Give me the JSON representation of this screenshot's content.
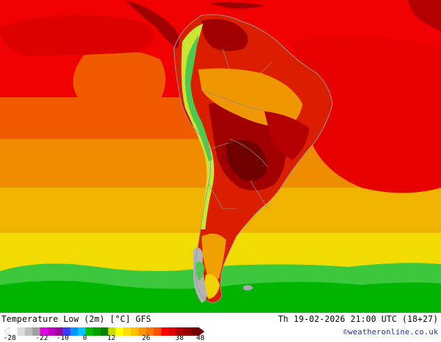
{
  "map": {
    "title": "Temperature Low (2m) [°C] GFS",
    "run": "Th 19-02-2026 21:00 UTC (18+27)",
    "credit": "©weatheronline.co.uk",
    "colors": {
      "ocean_south_cold": "#00b400",
      "ocean_south_cool": "#3cc83c",
      "ocean_yellow": "#f0e600",
      "ocean_amber": "#f0b400",
      "ocean_orange": "#f08c00",
      "ocean_orange_red": "#f05a00",
      "ocean_red": "#f00000",
      "land_red": "#dc1e00",
      "land_dark": "#a00000",
      "land_darkest": "#700000",
      "land_orange": "#f09600",
      "andes_green": "#50c850",
      "andes_yellow": "#c8e632",
      "patagonia_grey": "#aaaaaa",
      "border": "#999999"
    },
    "scale": {
      "ticks": [
        "-28",
        "-22",
        "-10",
        "0",
        "12",
        "26",
        "38",
        "48"
      ],
      "colors": [
        "#ffffff",
        "#dcdcdc",
        "#bebebe",
        "#a0a0a0",
        "#e600e6",
        "#be00be",
        "#a000a0",
        "#3c3cff",
        "#0096ff",
        "#00c8ff",
        "#00be00",
        "#00a000",
        "#008200",
        "#c8dc00",
        "#ffff00",
        "#ffdc00",
        "#ffbe00",
        "#ff9600",
        "#ff7800",
        "#ff5000",
        "#ff0000",
        "#dc0000",
        "#b40000",
        "#960000",
        "#780000"
      ]
    }
  }
}
